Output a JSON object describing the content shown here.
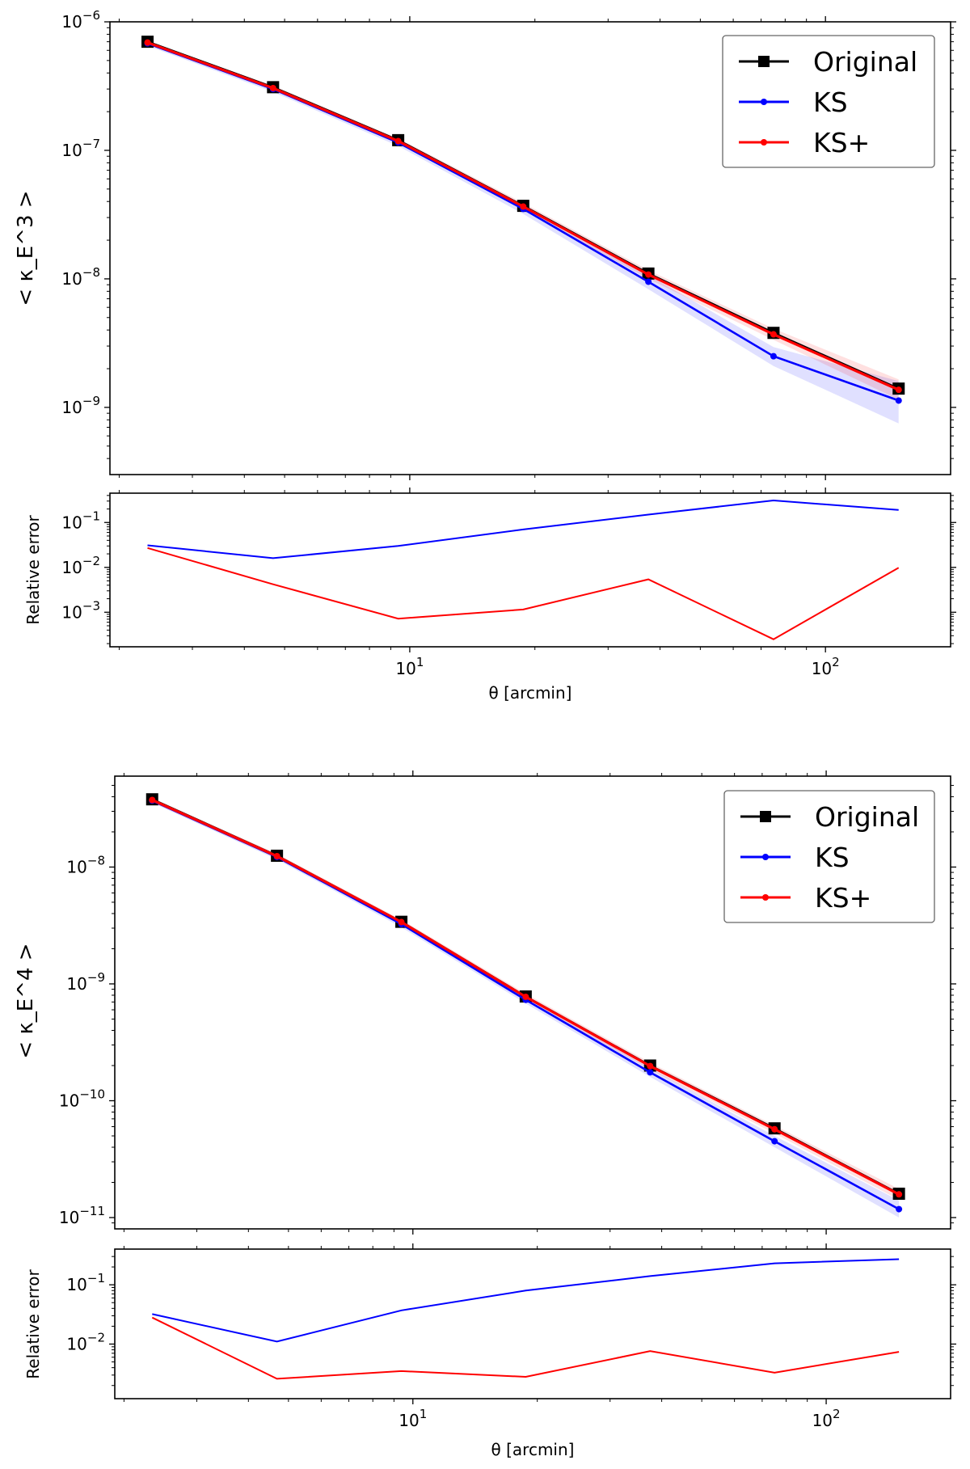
{
  "chart_data": [
    {
      "type": "line",
      "scale": "log-log",
      "ylabel_main": "< κ_E^3 >",
      "ylabel_residual": "Relative error",
      "xlabel": "θ [arcmin]",
      "x": [
        2.34,
        4.69,
        9.38,
        18.75,
        37.5,
        75,
        150
      ],
      "xlim": [
        1.9,
        200
      ],
      "ylim_main": [
        3e-10,
        1e-06
      ],
      "ylim_residual": [
        0.00017,
        0.45
      ],
      "legend_location": "top-right",
      "series": [
        {
          "name": "Original",
          "color": "#000000",
          "marker": "square",
          "values": [
            7e-07,
            3.1e-07,
            1.2e-07,
            3.7e-08,
            1.1e-08,
            3.8e-09,
            1.4e-09
          ]
        },
        {
          "name": "KS",
          "color": "#0000ff",
          "marker": "circle",
          "values": [
            6.8e-07,
            3e-07,
            1.15e-07,
            3.5e-08,
            9.5e-09,
            2.5e-09,
            1.13e-09
          ],
          "band_lower": [
            6.5e-07,
            2.85e-07,
            1.08e-07,
            3.2e-08,
            8.3e-09,
            2.1e-09,
            7.5e-10
          ],
          "band_upper": [
            7.1e-07,
            3.15e-07,
            1.22e-07,
            3.8e-08,
            1.07e-08,
            2.95e-09,
            1.6e-09
          ]
        },
        {
          "name": "KS+",
          "color": "#ff0000",
          "marker": "circle",
          "values": [
            6.9e-07,
            3.05e-07,
            1.18e-07,
            3.65e-08,
            1.08e-08,
            3.7e-09,
            1.37e-09
          ],
          "band_lower": [
            6.7e-07,
            2.95e-07,
            1.13e-07,
            3.45e-08,
            1e-08,
            3.35e-09,
            1.15e-09
          ],
          "band_upper": [
            7.1e-07,
            3.2e-07,
            1.24e-07,
            3.9e-08,
            1.17e-08,
            4.1e-09,
            1.65e-09
          ]
        }
      ],
      "residual_series": [
        {
          "name": "KS",
          "color": "#0000ff",
          "values": [
            0.031,
            0.016,
            0.03,
            0.07,
            0.15,
            0.31,
            0.19
          ]
        },
        {
          "name": "KS+",
          "color": "#ff0000",
          "values": [
            0.027,
            0.0042,
            0.00072,
            0.00115,
            0.0054,
            0.00025,
            0.0098
          ]
        }
      ],
      "main_yticks": [
        {
          "v": 1e-06,
          "base": "10",
          "exp": "−6"
        },
        {
          "v": 1e-07,
          "base": "10",
          "exp": "−7"
        },
        {
          "v": 1e-08,
          "base": "10",
          "exp": "−8"
        },
        {
          "v": 1e-09,
          "base": "10",
          "exp": "−9"
        }
      ],
      "residual_yticks": [
        {
          "v": 0.1,
          "base": "10",
          "exp": "−1"
        },
        {
          "v": 0.01,
          "base": "10",
          "exp": "−2"
        },
        {
          "v": 0.001,
          "base": "10",
          "exp": "−3"
        }
      ],
      "xticks": [
        {
          "v": 10,
          "base": "10",
          "exp": "1"
        },
        {
          "v": 100,
          "base": "10",
          "exp": "2"
        }
      ]
    },
    {
      "type": "line",
      "scale": "log-log",
      "ylabel_main": "< κ_E^4 >",
      "ylabel_residual": "Relative error",
      "xlabel": "θ [arcmin]",
      "x": [
        2.34,
        4.69,
        9.38,
        18.75,
        37.5,
        75,
        150
      ],
      "xlim": [
        1.9,
        200
      ],
      "ylim_main": [
        8e-12,
        6e-08
      ],
      "ylim_residual": [
        0.0012,
        0.4
      ],
      "legend_location": "top-right",
      "series": [
        {
          "name": "Original",
          "color": "#000000",
          "marker": "square",
          "values": [
            3.8e-08,
            1.25e-08,
            3.4e-09,
            7.8e-10,
            2e-10,
            5.8e-11,
            1.6e-11
          ]
        },
        {
          "name": "KS",
          "color": "#0000ff",
          "marker": "circle",
          "values": [
            3.7e-08,
            1.22e-08,
            3.25e-09,
            7.3e-10,
            1.75e-10,
            4.5e-11,
            1.18e-11
          ],
          "band_lower": [
            3.55e-08,
            1.16e-08,
            3.05e-09,
            6.8e-10,
            1.6e-10,
            4e-11,
            1e-11
          ],
          "band_upper": [
            3.85e-08,
            1.28e-08,
            3.45e-09,
            7.8e-10,
            1.9e-10,
            5e-11,
            1.4e-11
          ]
        },
        {
          "name": "KS+",
          "color": "#ff0000",
          "marker": "circle",
          "values": [
            3.75e-08,
            1.24e-08,
            3.38e-09,
            7.75e-10,
            1.98e-10,
            5.7e-11,
            1.58e-11
          ],
          "band_lower": [
            3.6e-08,
            1.19e-08,
            3.22e-09,
            7.3e-10,
            1.85e-10,
            5.25e-11,
            1.42e-11
          ],
          "band_upper": [
            3.9e-08,
            1.3e-08,
            3.55e-09,
            8.25e-10,
            2.12e-10,
            6.15e-11,
            1.76e-11
          ]
        }
      ],
      "residual_series": [
        {
          "name": "KS",
          "color": "#0000ff",
          "values": [
            0.032,
            0.011,
            0.037,
            0.08,
            0.14,
            0.23,
            0.27
          ]
        },
        {
          "name": "KS+",
          "color": "#ff0000",
          "values": [
            0.028,
            0.0026,
            0.0035,
            0.0028,
            0.0076,
            0.0033,
            0.0074
          ]
        }
      ],
      "main_yticks": [
        {
          "v": 1e-08,
          "base": "10",
          "exp": "−8"
        },
        {
          "v": 1e-09,
          "base": "10",
          "exp": "−9"
        },
        {
          "v": 1e-10,
          "base": "10",
          "exp": "−10"
        },
        {
          "v": 1e-11,
          "base": "10",
          "exp": "−11"
        }
      ],
      "residual_yticks": [
        {
          "v": 0.1,
          "base": "10",
          "exp": "−1"
        },
        {
          "v": 0.01,
          "base": "10",
          "exp": "−2"
        }
      ],
      "xticks": [
        {
          "v": 10,
          "base": "10",
          "exp": "1"
        },
        {
          "v": 100,
          "base": "10",
          "exp": "2"
        }
      ]
    }
  ]
}
